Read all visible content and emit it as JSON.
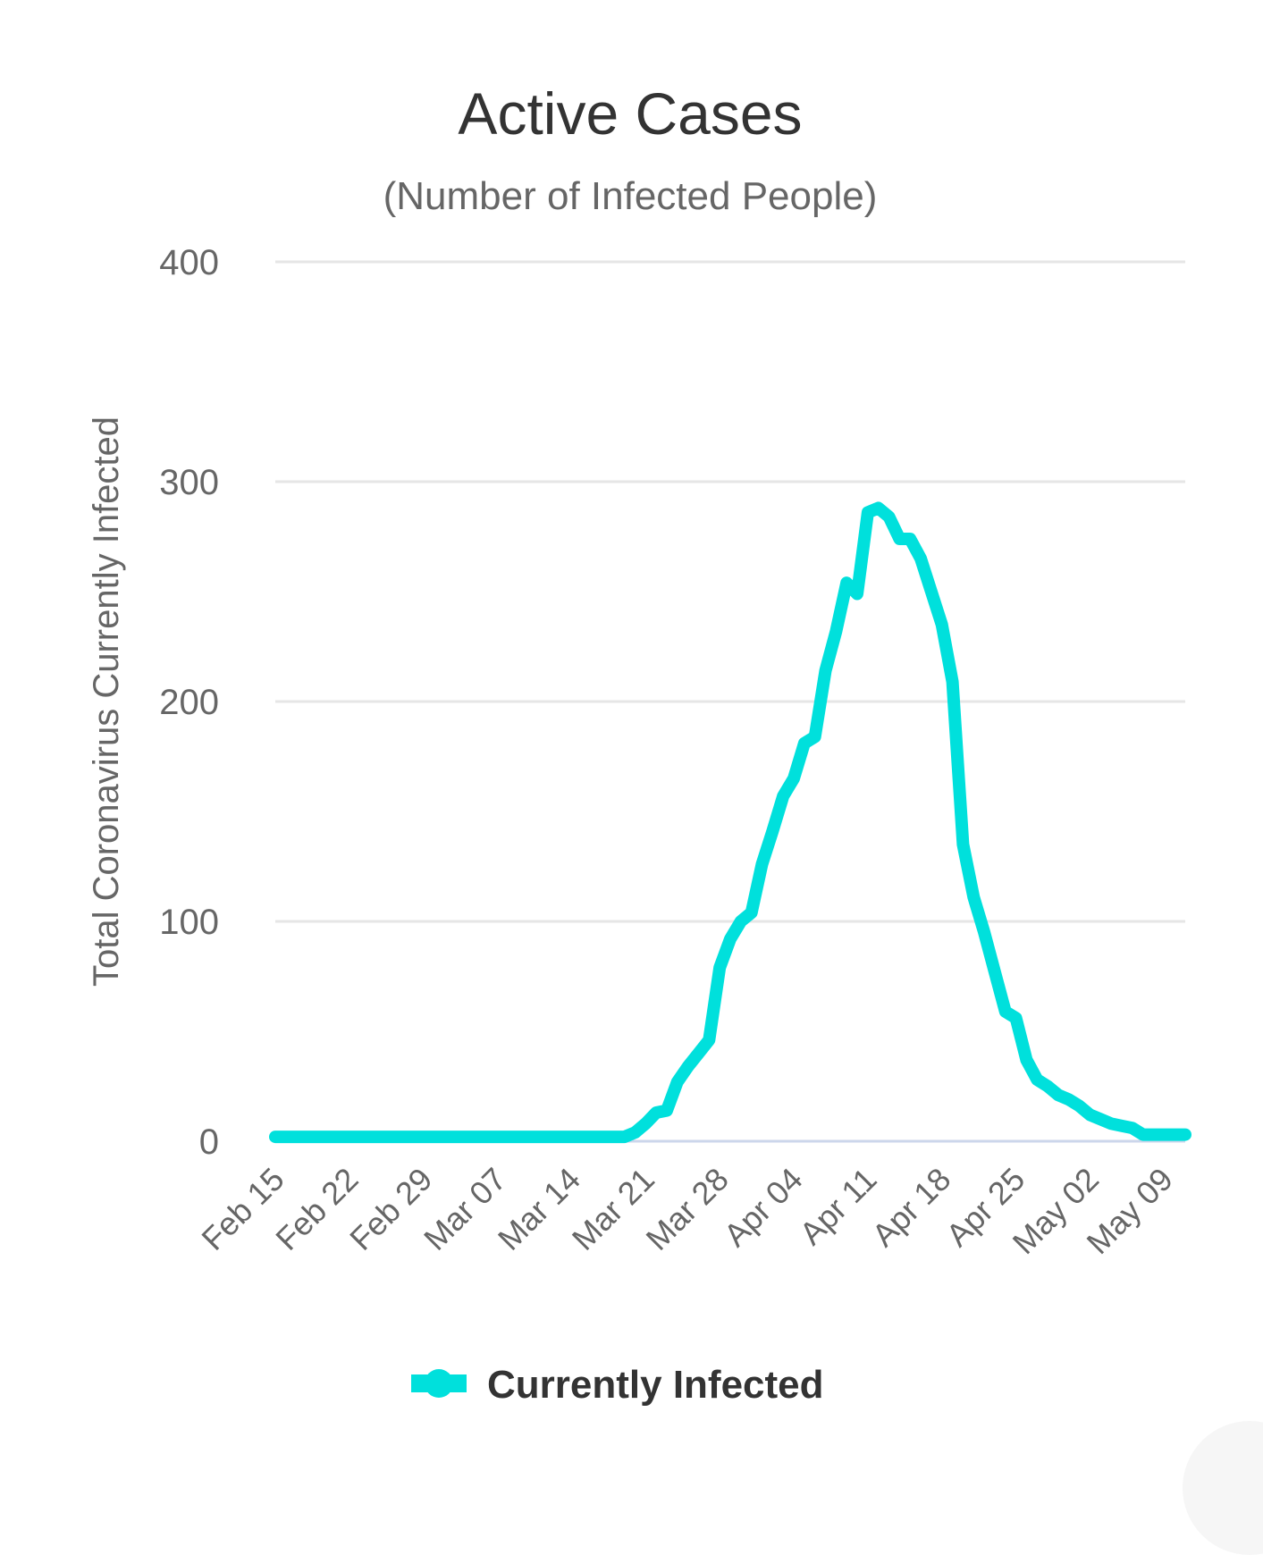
{
  "chart_data": {
    "type": "line",
    "title": "Active Cases",
    "subtitle": "(Number of Infected People)",
    "xlabel": "",
    "ylabel": "Total Coronavirus Currently Infected",
    "ylim": [
      0,
      400
    ],
    "yticks": [
      "0",
      "100",
      "200",
      "300",
      "400"
    ],
    "ytick_values": [
      0,
      100,
      200,
      300,
      400
    ],
    "xticks": [
      "Feb 15",
      "Feb 22",
      "Feb 29",
      "Mar 07",
      "Mar 14",
      "Mar 21",
      "Mar 28",
      "Apr 04",
      "Apr 11",
      "Apr 18",
      "Apr 25",
      "May 02",
      "May 09"
    ],
    "xtick_day_index": [
      0,
      7,
      14,
      21,
      28,
      35,
      42,
      49,
      56,
      63,
      70,
      77,
      84
    ],
    "grid": true,
    "legend_position": "bottom",
    "series": [
      {
        "name": "Currently Infected",
        "color": "#00e0dc",
        "start_date": "Feb 15",
        "values": [
          2,
          2,
          2,
          2,
          2,
          2,
          2,
          2,
          2,
          2,
          2,
          2,
          2,
          2,
          2,
          2,
          2,
          2,
          2,
          2,
          2,
          2,
          2,
          2,
          2,
          2,
          2,
          2,
          2,
          2,
          2,
          2,
          2,
          2,
          4,
          8,
          13,
          14,
          27,
          34,
          40,
          46,
          79,
          92,
          100,
          104,
          126,
          141,
          157,
          165,
          181,
          184,
          214,
          232,
          254,
          249,
          286,
          288,
          284,
          274,
          274,
          265,
          250,
          235,
          209,
          135,
          111,
          95,
          77,
          59,
          56,
          37,
          28,
          25,
          21,
          19,
          16,
          12,
          10,
          8,
          7,
          6,
          3,
          3,
          3,
          3,
          3
        ]
      }
    ]
  },
  "legend": {
    "label": "Currently Infected"
  }
}
